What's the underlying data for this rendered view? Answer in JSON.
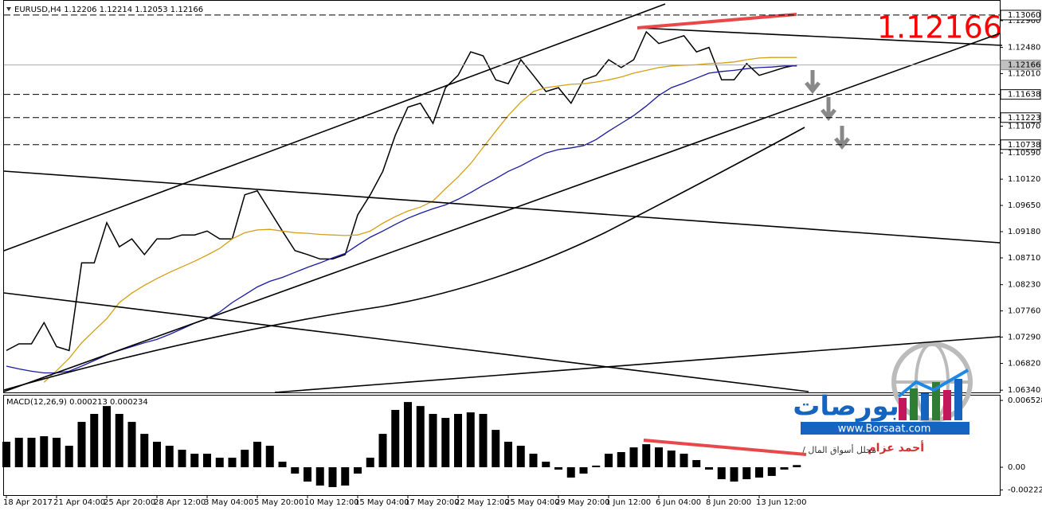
{
  "chart_data": [
    {
      "type": "line",
      "title": "EURUSD,H4 1.12206 1.12214 1.12053 1.12166",
      "annotation": "1.12166",
      "categories": [
        "18 Apr 2017",
        null,
        null,
        null,
        "21 Apr 04:00",
        null,
        null,
        null,
        "25 Apr 20:00",
        null,
        null,
        null,
        "28 Apr 12:00",
        null,
        null,
        null,
        "3 May 04:00",
        null,
        null,
        null,
        "5 May 20:00",
        null,
        null,
        null,
        "10 May 12:00",
        null,
        null,
        null,
        "15 May 04:00",
        null,
        null,
        null,
        "17 May 20:00",
        null,
        null,
        null,
        "22 May 12:00",
        null,
        null,
        null,
        "25 May 04:00",
        null,
        null,
        null,
        "29 May 20:00",
        null,
        null,
        null,
        "1 Jun 12:00",
        null,
        null,
        null,
        "6 Jun 04:00",
        null,
        null,
        null,
        "8 Jun 20:00",
        null,
        null,
        null,
        "13 Jun 12:00",
        null,
        null,
        null
      ],
      "series": [
        {
          "color": "#000000",
          "values": [
            1.0705,
            1.0717,
            1.0717,
            1.0755,
            1.0712,
            1.0705,
            1.0862,
            1.0862,
            1.0934,
            1.0891,
            1.0905,
            1.0877,
            1.0905,
            1.0905,
            1.0912,
            1.0912,
            1.0919,
            1.0905,
            1.0905,
            1.0984,
            1.0991,
            1.0955,
            1.0919,
            1.0884,
            1.0877,
            1.0869,
            1.0869,
            1.0877,
            1.0948,
            1.0984,
            1.1026,
            1.1091,
            1.1141,
            1.1148,
            1.1112,
            1.1176,
            1.1198,
            1.124,
            1.1233,
            1.119,
            1.1183,
            1.1226,
            1.1198,
            1.1169,
            1.1176,
            1.1148,
            1.119,
            1.1198,
            1.1226,
            1.1212,
            1.1226,
            1.1276,
            1.1255,
            1.1262,
            1.1269,
            1.124,
            1.1248,
            1.119,
            1.119,
            1.1219,
            1.1198,
            1.1205,
            1.1212,
            1.12166
          ]
        },
        {
          "color": "#d4a017",
          "values": [
            null,
            null,
            null,
            1.0648,
            1.0669,
            1.0691,
            1.0719,
            1.0741,
            1.0762,
            1.0791,
            1.0808,
            1.0822,
            1.0834,
            1.0845,
            1.0855,
            1.0865,
            1.0876,
            1.0888,
            1.0905,
            1.0916,
            1.0921,
            1.0922,
            1.0919,
            1.0916,
            1.0915,
            1.0913,
            1.0912,
            1.0911,
            1.0912,
            1.0919,
            1.0933,
            1.0945,
            1.0955,
            1.0962,
            1.0973,
            1.0995,
            1.1016,
            1.104,
            1.1069,
            1.1098,
            1.1126,
            1.115,
            1.1169,
            1.1176,
            1.1179,
            1.1182,
            1.1183,
            1.1186,
            1.119,
            1.1195,
            1.1202,
            1.1207,
            1.1212,
            1.1215,
            1.1216,
            1.1217,
            1.1219,
            1.122,
            1.1222,
            1.1226,
            1.1229,
            1.123,
            1.123,
            1.123
          ]
        },
        {
          "color": "#1a1aa0",
          "values": [
            1.0677,
            1.0672,
            1.0668,
            1.0665,
            1.0665,
            1.0668,
            1.0677,
            1.0687,
            1.0697,
            1.0705,
            1.0712,
            1.0719,
            1.0725,
            1.0734,
            1.0744,
            1.0754,
            1.0762,
            1.0774,
            1.0791,
            1.0805,
            1.0819,
            1.0829,
            1.0836,
            1.0845,
            1.0854,
            1.0862,
            1.0871,
            1.0879,
            1.0894,
            1.0908,
            1.0919,
            1.0931,
            1.0942,
            1.0951,
            1.0959,
            1.0966,
            1.0976,
            1.0988,
            1.1001,
            1.1013,
            1.1026,
            1.1036,
            1.1048,
            1.1059,
            1.1065,
            1.1068,
            1.1072,
            1.1083,
            1.1098,
            1.1112,
            1.1126,
            1.1143,
            1.1162,
            1.1176,
            1.1184,
            1.1193,
            1.1202,
            1.1205,
            1.1207,
            1.121,
            1.1212,
            1.1213,
            1.1215,
            1.1215
          ]
        }
      ],
      "ylim": [
        1.063,
        1.1333
      ],
      "yticks": [
        {
          "value": 1.1296,
          "label": "1.12960"
        },
        {
          "value": 1.1248,
          "label": "1.12480"
        },
        {
          "value": 1.1201,
          "label": "1.12010"
        },
        {
          "value": 1.1107,
          "label": "1.11070"
        },
        {
          "value": 1.1059,
          "label": "1.10590"
        },
        {
          "value": 1.1012,
          "label": "1.10120"
        },
        {
          "value": 1.0965,
          "label": "1.09650"
        },
        {
          "value": 1.0918,
          "label": "1.09180"
        },
        {
          "value": 1.0871,
          "label": "1.08710"
        },
        {
          "value": 1.0823,
          "label": "1.08230"
        },
        {
          "value": 1.0776,
          "label": "1.07760"
        },
        {
          "value": 1.0729,
          "label": "1.07290"
        },
        {
          "value": 1.0682,
          "label": "1.06820"
        },
        {
          "value": 1.0634,
          "label": "1.06340"
        }
      ],
      "levels": [
        {
          "value": 1.1306,
          "label": "1.13060"
        },
        {
          "value": 1.11638,
          "label": "1.11638"
        },
        {
          "value": 1.11223,
          "label": "1.11223"
        },
        {
          "value": 1.10738,
          "label": "1.10738"
        }
      ],
      "last_price": {
        "value": 1.12166,
        "label": "1.12166"
      }
    },
    {
      "type": "bar",
      "title": "MACD(12,26,9) 0.000213 0.000234",
      "color": "#000000",
      "values": [
        0.00249,
        0.00288,
        0.00288,
        0.00303,
        0.00288,
        0.0021,
        0.00443,
        0.00521,
        0.00598,
        0.00521,
        0.00443,
        0.00326,
        0.00249,
        0.0021,
        0.00171,
        0.00132,
        0.00132,
        0.00093,
        0.00093,
        0.00171,
        0.00249,
        0.0021,
        0.00054,
        -0.00062,
        -0.0014,
        -0.00179,
        -0.00194,
        -0.00179,
        -0.00062,
        0.00093,
        0.00326,
        0.0056,
        0.00637,
        0.00598,
        0.00521,
        0.00482,
        0.00521,
        0.00536,
        0.00521,
        0.00365,
        0.00249,
        0.0021,
        0.00132,
        0.00054,
        -0.00023,
        -0.00101,
        -0.00062,
        0.00016,
        0.00132,
        0.00148,
        0.00194,
        0.00225,
        0.00194,
        0.00163,
        0.00132,
        0.0007,
        -0.00023,
        -0.00117,
        -0.0014,
        -0.00117,
        -0.00101,
        -0.00085,
        -0.00023,
        0.000213
      ],
      "ylim": [
        -0.00272,
        0.007
      ],
      "yticks": [
        {
          "value": 0.006528,
          "label": "0.006528"
        },
        {
          "value": 0,
          "label": "0.00"
        },
        {
          "value": -0.002227,
          "label": "-0.002227"
        }
      ]
    }
  ],
  "logo": {
    "name": "بورصات",
    "url": "www.Borsaat.com",
    "author": "أحمد عزام",
    "role": "/ محلل أسواق المال"
  }
}
